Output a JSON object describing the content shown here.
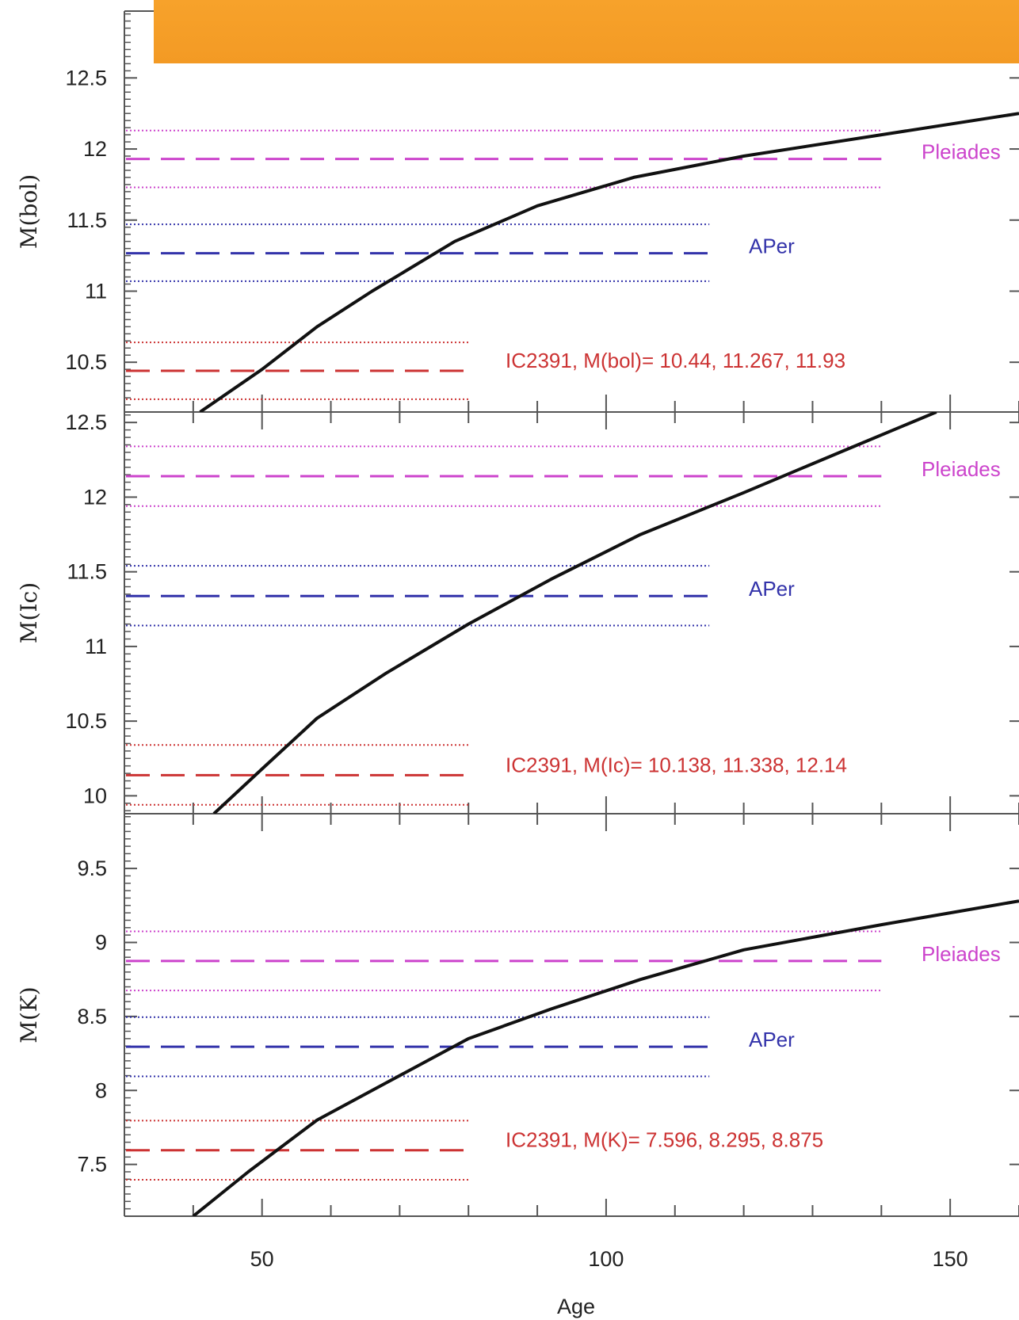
{
  "banner": {
    "color": "#f39a24"
  },
  "chart_data": {
    "type": "line",
    "xlabel": "Age",
    "xlim": [
      30,
      160
    ],
    "x_ticks": [
      50,
      100,
      150
    ],
    "colors": {
      "model": "#111111",
      "pleiades": "#cc44cc",
      "aper": "#3333aa",
      "ic2391": "#cc3333"
    },
    "panels": [
      {
        "ylabel": "M(bol)",
        "ylim": [
          10.15,
          12.97
        ],
        "y_ticks": [
          10.5,
          11,
          11.5,
          12,
          12.5
        ],
        "y_tick_labels": [
          "10.5",
          "11",
          "11.5",
          "12",
          "12.5"
        ],
        "model": {
          "x": [
            41,
            50,
            58,
            66,
            78,
            90,
            104,
            120,
            140,
            160
          ],
          "y": [
            10.15,
            10.45,
            10.75,
            11.0,
            11.35,
            11.6,
            11.8,
            11.95,
            12.1,
            12.25
          ]
        },
        "references": [
          {
            "name": "Pleiades",
            "value": 11.93,
            "lower": 11.73,
            "upper": 12.13,
            "x_end": 140,
            "label": "Pleiades"
          },
          {
            "name": "APer",
            "value": 11.267,
            "lower": 11.07,
            "upper": 11.47,
            "x_end": 115,
            "label": "APer"
          },
          {
            "name": "IC2391",
            "value": 10.44,
            "lower": 10.24,
            "upper": 10.64,
            "x_end": 80,
            "label": "IC2391, M(bol)= 10.44, 11.267, 11.93"
          }
        ]
      },
      {
        "ylabel": "M(Ic)",
        "ylim": [
          9.88,
          12.57
        ],
        "y_ticks": [
          10,
          10.5,
          11,
          11.5,
          12,
          12.5
        ],
        "y_tick_labels": [
          "10",
          "10.5",
          "11",
          "11.5",
          "12",
          "12.5"
        ],
        "model": {
          "x": [
            43,
            50,
            58,
            68,
            80,
            92,
            105,
            120,
            135,
            148
          ],
          "y": [
            9.88,
            10.18,
            10.52,
            10.82,
            11.15,
            11.45,
            11.75,
            12.03,
            12.32,
            12.57
          ]
        },
        "references": [
          {
            "name": "Pleiades",
            "value": 12.14,
            "lower": 11.94,
            "upper": 12.34,
            "x_end": 140,
            "label": "Pleiades"
          },
          {
            "name": "APer",
            "value": 11.338,
            "lower": 11.14,
            "upper": 11.54,
            "x_end": 115,
            "label": "APer"
          },
          {
            "name": "IC2391",
            "value": 10.138,
            "lower": 9.94,
            "upper": 10.34,
            "x_end": 80,
            "label": "IC2391, M(Ic)= 10.138, 11.338, 12.14"
          }
        ]
      },
      {
        "ylabel": "M(K)",
        "ylim": [
          7.15,
          9.87
        ],
        "y_ticks": [
          7.5,
          8,
          8.5,
          9,
          9.5
        ],
        "y_tick_labels": [
          "7.5",
          "8",
          "8.5",
          "9",
          "9.5"
        ],
        "model": {
          "x": [
            40,
            48,
            58,
            68,
            80,
            92,
            105,
            120,
            140,
            160
          ],
          "y": [
            7.15,
            7.45,
            7.8,
            8.05,
            8.35,
            8.55,
            8.75,
            8.95,
            9.12,
            9.28
          ]
        },
        "references": [
          {
            "name": "Pleiades",
            "value": 8.875,
            "lower": 8.675,
            "upper": 9.075,
            "x_end": 140,
            "label": "Pleiades"
          },
          {
            "name": "APer",
            "value": 8.295,
            "lower": 8.095,
            "upper": 8.495,
            "x_end": 115,
            "label": "APer"
          },
          {
            "name": "IC2391",
            "value": 7.596,
            "lower": 7.396,
            "upper": 7.796,
            "x_end": 80,
            "label": "IC2391, M(K)= 7.596, 8.295, 8.875"
          }
        ]
      }
    ]
  }
}
